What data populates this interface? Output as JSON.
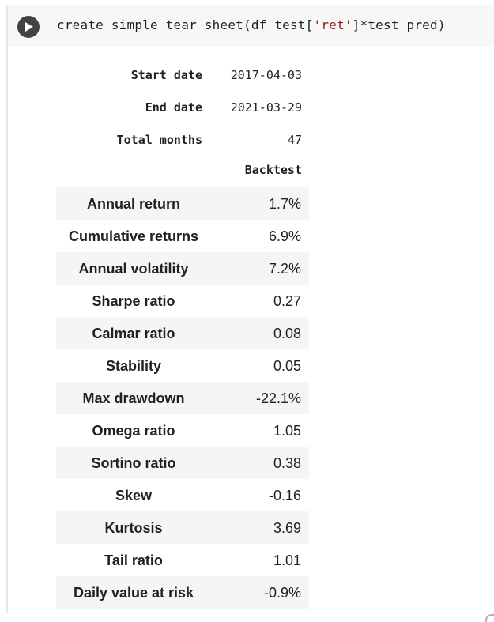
{
  "code_cell": {
    "code_prefix": "create_simple_tear_sheet(df_test[",
    "code_string": "'ret'",
    "code_suffix": "]*test_pred)",
    "run_icon": "play-circle-icon"
  },
  "output": {
    "meta": [
      {
        "label": "Start date",
        "value": "2017-04-03"
      },
      {
        "label": "End date",
        "value": "2021-03-29"
      },
      {
        "label": "Total months",
        "value": "47"
      }
    ],
    "column_header": "Backtest",
    "rows": [
      {
        "label": "Annual return",
        "value": "1.7%"
      },
      {
        "label": "Cumulative returns",
        "value": "6.9%"
      },
      {
        "label": "Annual volatility",
        "value": "7.2%"
      },
      {
        "label": "Sharpe ratio",
        "value": "0.27"
      },
      {
        "label": "Calmar ratio",
        "value": "0.08"
      },
      {
        "label": "Stability",
        "value": "0.05"
      },
      {
        "label": "Max drawdown",
        "value": "-22.1%"
      },
      {
        "label": "Omega ratio",
        "value": "1.05"
      },
      {
        "label": "Sortino ratio",
        "value": "0.38"
      },
      {
        "label": "Skew",
        "value": "-0.16"
      },
      {
        "label": "Kurtosis",
        "value": "3.69"
      },
      {
        "label": "Tail ratio",
        "value": "1.01"
      },
      {
        "label": "Daily value at risk",
        "value": "-0.9%"
      }
    ]
  },
  "colors": {
    "code_background": "#f7f7f7",
    "string_literal": "#a31515",
    "row_shade": "#f5f5f5",
    "run_button": "#424242"
  }
}
